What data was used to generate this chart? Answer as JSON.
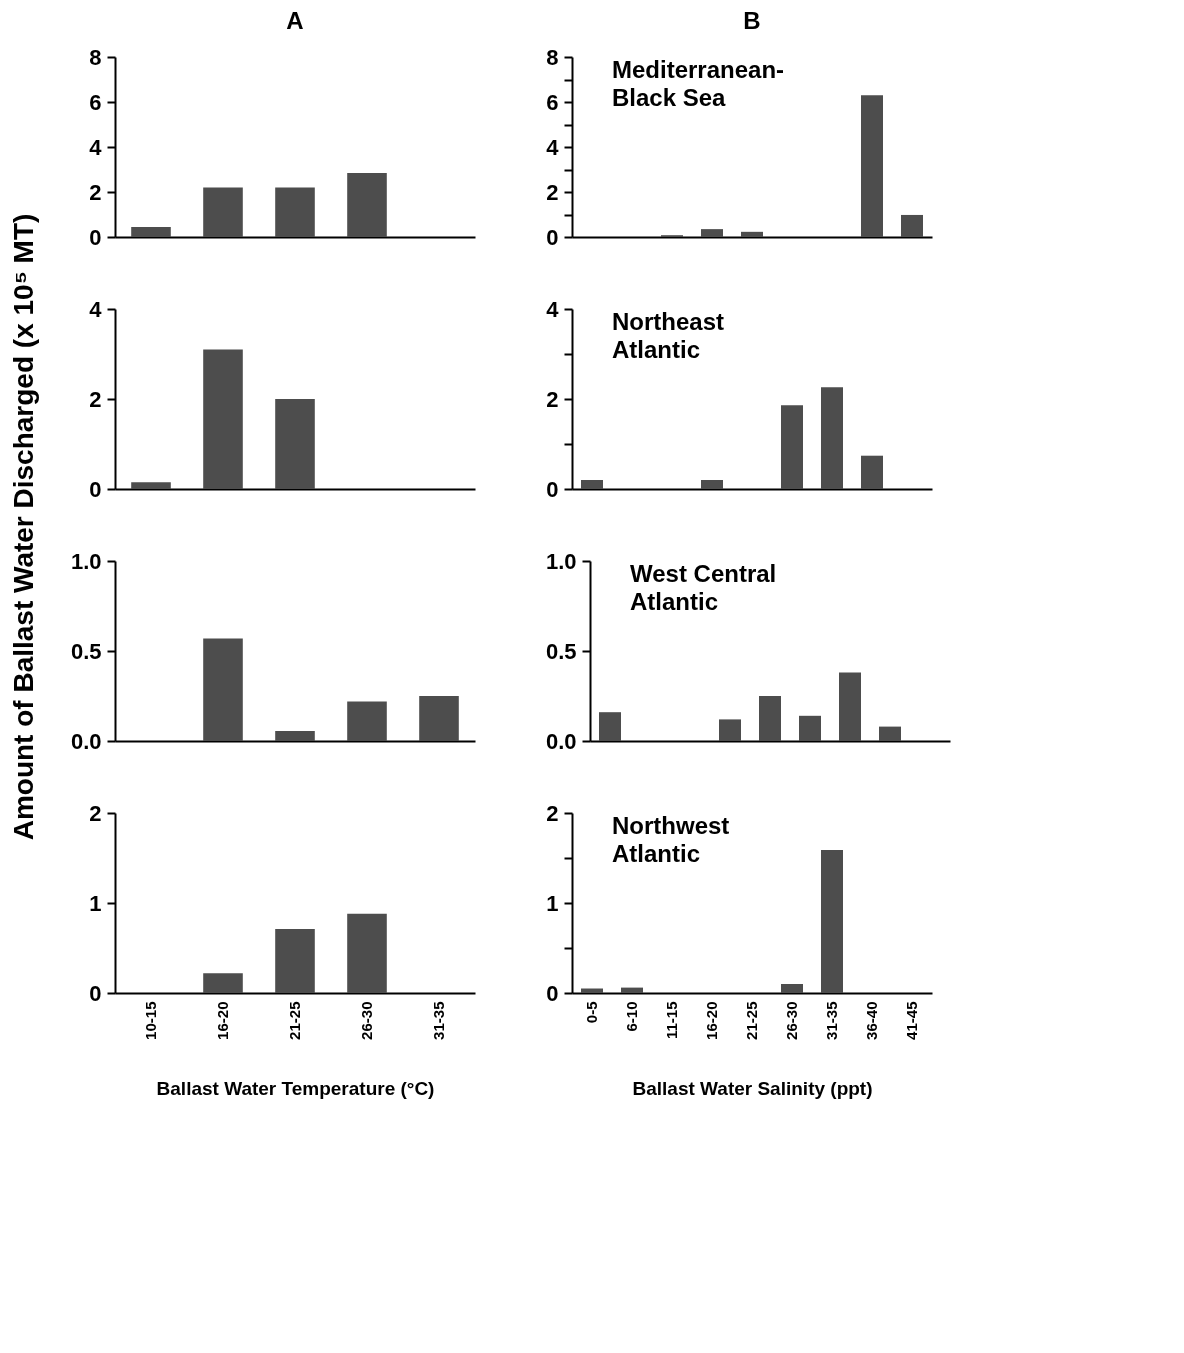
{
  "chart_data": [
    {
      "type": "bar",
      "title": "A",
      "ylabel": "Amount of Ballast Water Discharged (x 10⁵ MT)",
      "categories": [
        null,
        null,
        null,
        null,
        null
      ],
      "values": [
        0.45,
        2.2,
        2.2,
        2.85,
        0
      ],
      "color": "#4d4d4d",
      "ylim": [
        0,
        8
      ],
      "yticks": [
        0,
        2,
        4,
        6,
        8
      ],
      "tick_labels": "y"
    },
    {
      "type": "bar",
      "title": "B",
      "categories": [
        null,
        null,
        null,
        null,
        null,
        null,
        null,
        null,
        null
      ],
      "values": [
        0,
        0,
        0.08,
        0.35,
        0.23,
        0,
        0,
        6.3,
        0.98
      ],
      "color": "#4d4d4d",
      "ylim": [
        0,
        8
      ],
      "yticks": [
        0,
        {
          "value": 1,
          "label": null
        },
        2,
        {
          "value": 3,
          "label": null
        },
        4,
        {
          "value": 5,
          "label": null
        },
        6,
        {
          "value": 7,
          "label": null
        },
        8
      ],
      "tick_labels": "y",
      "annotations": [
        "Mediterranean-Black Sea"
      ]
    },
    {
      "type": "bar",
      "categories": [
        null,
        null,
        null,
        null,
        null
      ],
      "values": [
        0.15,
        3.1,
        2.0,
        0,
        0
      ],
      "color": "#4d4d4d",
      "ylim": [
        0,
        4
      ],
      "yticks": [
        0,
        2,
        4
      ],
      "tick_labels": "y"
    },
    {
      "type": "bar",
      "categories": [
        null,
        null,
        null,
        null,
        null,
        null,
        null,
        null,
        null
      ],
      "values": [
        0.2,
        0,
        0,
        0.2,
        0,
        1.86,
        2.26,
        0.74,
        0
      ],
      "color": "#4d4d4d",
      "ylim": [
        0,
        4
      ],
      "yticks": [
        0,
        {
          "value": 1,
          "label": null
        },
        2,
        {
          "value": 3,
          "label": null
        },
        4
      ],
      "tick_labels": "y",
      "annotations": [
        "Northeast Atlantic"
      ]
    },
    {
      "type": "bar",
      "categories": [
        null,
        null,
        null,
        null,
        null
      ],
      "values": [
        0,
        0.57,
        0.055,
        0.22,
        0.25
      ],
      "color": "#4d4d4d",
      "ylim": [
        0,
        1
      ],
      "yticks": [
        {
          "value": 0,
          "label": "0.0"
        },
        0.5,
        {
          "value": 1,
          "label": "1.0"
        }
      ],
      "tick_labels": "y"
    },
    {
      "type": "bar",
      "categories": [
        null,
        null,
        null,
        null,
        null,
        null,
        null,
        null,
        null
      ],
      "values": [
        0.16,
        0,
        0,
        0.12,
        0.25,
        0.14,
        0.38,
        0.08,
        0
      ],
      "color": "#4d4d4d",
      "ylim": [
        0,
        1
      ],
      "yticks": [
        {
          "value": 0,
          "label": "0.0"
        },
        0.5,
        {
          "value": 1,
          "label": "1.0"
        }
      ],
      "tick_labels": "y",
      "annotations": [
        "West Central Atlantic"
      ]
    },
    {
      "type": "bar",
      "xlabel": "Ballast Water Temperature (°C)",
      "categories": [
        "10-15",
        "16-20",
        "21-25",
        "26-30",
        "31-35"
      ],
      "values": [
        0,
        0.22,
        0.71,
        0.88,
        0
      ],
      "color": "#4d4d4d",
      "ylim": [
        0,
        2
      ],
      "yticks": [
        0,
        1,
        2
      ]
    },
    {
      "type": "bar",
      "xlabel": "Ballast Water Salinity (ppt)",
      "categories": [
        "0-5",
        "6-10",
        "11-15",
        "16-20",
        "21-25",
        "26-30",
        "31-35",
        "36-40",
        "41-45"
      ],
      "values": [
        0.05,
        0.06,
        0,
        0,
        0,
        0.1,
        1.59,
        0,
        0
      ],
      "color": "#4d4d4d",
      "ylim": [
        0,
        2
      ],
      "yticks": [
        0,
        {
          "value": 0.5,
          "label": null
        },
        1,
        {
          "value": 1.5,
          "label": null
        },
        2
      ],
      "annotations": [
        "Northwest Atlantic"
      ]
    }
  ]
}
